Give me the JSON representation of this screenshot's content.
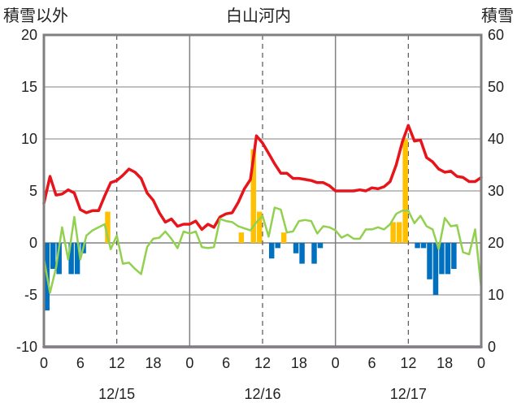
{
  "chart_data": {
    "type": "bar+line",
    "title": "白山河内",
    "left_axis_label": "積雪以外",
    "right_axis_label": "積雪",
    "y_left": {
      "min": -10,
      "max": 20,
      "ticks": [
        20,
        15,
        10,
        5,
        0,
        -5,
        -10
      ]
    },
    "y_right": {
      "min": 0,
      "max": 60,
      "ticks": [
        60,
        50,
        40,
        30,
        20,
        10,
        0
      ]
    },
    "x": {
      "min": 0,
      "max": 72,
      "tick_positions": [
        0,
        6,
        12,
        18,
        24,
        30,
        36,
        42,
        48,
        54,
        60,
        66,
        72
      ],
      "tick_labels": [
        "0",
        "6",
        "12",
        "18",
        "0",
        "6",
        "12",
        "18",
        "0",
        "6",
        "12",
        "18",
        "0"
      ],
      "day_labels": [
        {
          "text": "12/15",
          "center_hour": 12
        },
        {
          "text": "12/16",
          "center_hour": 36
        },
        {
          "text": "12/17",
          "center_hour": 60
        }
      ],
      "solid_gridlines": [
        24,
        48
      ],
      "dashed_gridlines": [
        12,
        36,
        60
      ]
    },
    "colors": {
      "temperature": "#e8141b",
      "wind": "#92d050",
      "precip": "#ffc000",
      "negative_bars": "#0070c0",
      "snow_depth": "#7030a0",
      "frame": "#808080"
    },
    "series": [
      {
        "key": "temperature",
        "style": "line",
        "axis": "left",
        "values": [
          3.8,
          6.4,
          4.6,
          4.7,
          5.1,
          4.8,
          3.2,
          2.9,
          3.1,
          3.1,
          4.5,
          5.8,
          6.0,
          6.5,
          7.1,
          6.8,
          6.2,
          4.8,
          4.1,
          2.9,
          2.0,
          2.3,
          1.6,
          1.8,
          1.8,
          2.1,
          1.3,
          1.8,
          1.5,
          2.5,
          2.8,
          2.9,
          3.9,
          5.2,
          6.1,
          10.3,
          9.6,
          8.6,
          7.6,
          6.7,
          6.7,
          6.2,
          6.2,
          6.1,
          6.0,
          5.8,
          5.8,
          5.5,
          5.0,
          5.0,
          5.0,
          5.0,
          5.1,
          5.0,
          5.3,
          5.2,
          5.4,
          5.9,
          7.5,
          9.7,
          11.3,
          9.8,
          9.9,
          8.2,
          7.8,
          7.1,
          6.8,
          6.9,
          6.4,
          6.3,
          5.9,
          5.9,
          6.3
        ]
      },
      {
        "key": "wind",
        "style": "line",
        "axis": "left",
        "values": [
          -1.5,
          -4.8,
          -2.4,
          1.5,
          -1.6,
          2.5,
          -1.6,
          0.7,
          1.2,
          1.5,
          1.8,
          -0.6,
          0.7,
          -2.0,
          -1.9,
          -2.5,
          -3.0,
          -0.4,
          0.4,
          0.5,
          1.1,
          0.4,
          -0.5,
          1.1,
          0.9,
          1.1,
          -0.4,
          -0.5,
          -0.4,
          2.3,
          2.1,
          2.0,
          1.6,
          1.4,
          1.2,
          2.0,
          2.6,
          0.6,
          3.4,
          3.2,
          1.0,
          1.1,
          2.1,
          2.2,
          2.1,
          0.9,
          1.6,
          1.5,
          1.2,
          0.5,
          0.8,
          0.4,
          0.4,
          1.3,
          1.3,
          1.5,
          1.3,
          1.8,
          2.8,
          3.1,
          3.1,
          1.9,
          2.6,
          1.6,
          1.3,
          -0.6,
          2.4,
          1.6,
          1.7,
          -0.9,
          -1.1,
          1.3,
          -4.4
        ]
      },
      {
        "key": "precip",
        "style": "bar",
        "axis": "left",
        "x": [
          10,
          32,
          34,
          35,
          39,
          57,
          58,
          59
        ],
        "values": [
          3.0,
          1.0,
          9.0,
          3.0,
          1.0,
          2.0,
          2.0,
          10.0
        ]
      },
      {
        "key": "negative_bars",
        "style": "bar",
        "axis": "left",
        "x": [
          0,
          1,
          2,
          4,
          5,
          6,
          37,
          38,
          41,
          42,
          44,
          45,
          61,
          62,
          63,
          64,
          65,
          66,
          67
        ],
        "values": [
          -6.5,
          -2.5,
          -3.0,
          -3.0,
          -3.0,
          -1.0,
          -1.5,
          -0.5,
          -1.0,
          -2.0,
          -2.0,
          -0.5,
          -0.5,
          -0.5,
          -3.5,
          -5.0,
          -3.0,
          -3.0,
          -2.5
        ]
      },
      {
        "key": "snow_depth",
        "style": "line",
        "axis": "right",
        "values": [
          0,
          0
        ]
      }
    ]
  }
}
